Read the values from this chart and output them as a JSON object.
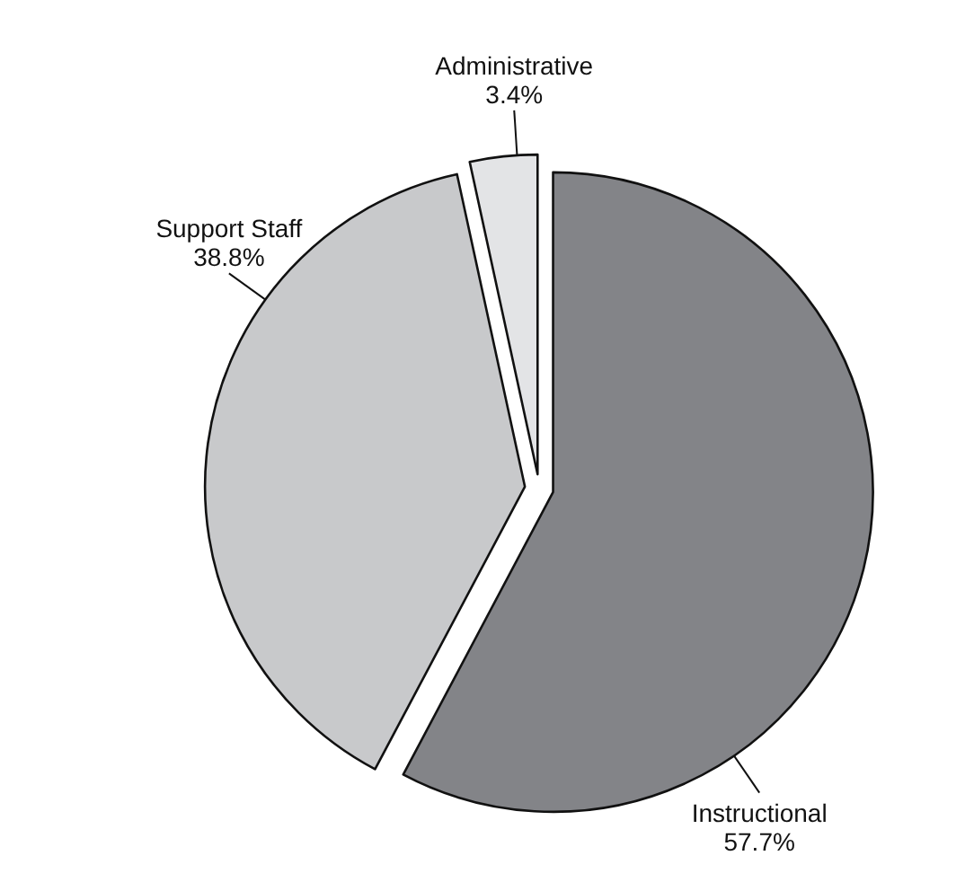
{
  "chart_data": {
    "type": "pie",
    "categories": [
      "Instructional",
      "Support Staff",
      "Administrative"
    ],
    "values": [
      57.7,
      38.8,
      3.4
    ],
    "value_labels": [
      "57.7%",
      "38.8%",
      "3.4%"
    ],
    "colors": [
      "#838488",
      "#c8c9cb",
      "#e3e4e6"
    ]
  }
}
